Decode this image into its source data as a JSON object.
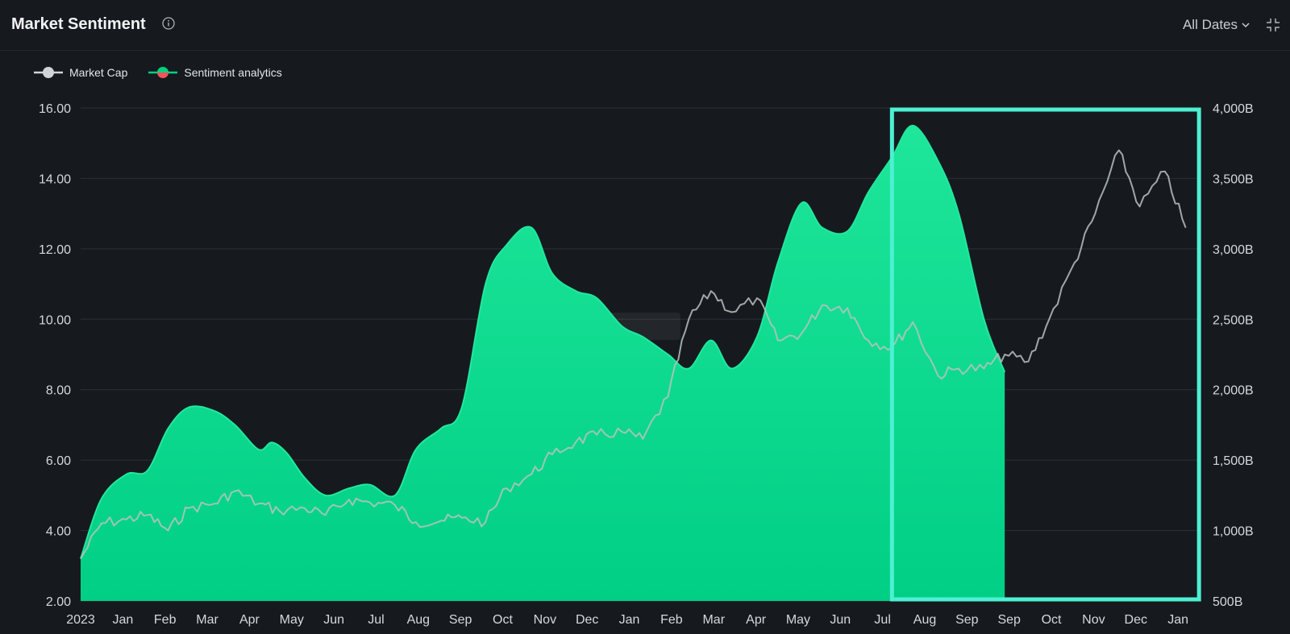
{
  "header": {
    "title": "Market Sentiment",
    "date_range_label": "All Dates"
  },
  "icons": {
    "info": "info-icon",
    "dropdown": "chevron-down-icon",
    "collapse": "collapse-icon",
    "watermark": "brand-logo-watermark"
  },
  "colors": {
    "background": "#161a1f",
    "sentiment_fill": "#00d17f",
    "market_cap_line": "#b8c2c0",
    "highlight_box": "#4df0d2",
    "legend_negative": "#f2545b"
  },
  "chart_data": {
    "type": "area",
    "series": [
      {
        "name": "Sentiment analytics",
        "axis": "left",
        "x": [
          "2023-01-01",
          "2023-01-15",
          "2023-02-01",
          "2023-02-15",
          "2023-03-01",
          "2023-03-15",
          "2023-04-01",
          "2023-04-15",
          "2023-05-01",
          "2023-05-10",
          "2023-05-20",
          "2023-06-01",
          "2023-06-15",
          "2023-07-01",
          "2023-07-15",
          "2023-08-01",
          "2023-08-15",
          "2023-09-01",
          "2023-09-15",
          "2023-10-01",
          "2023-10-15",
          "2023-11-01",
          "2023-11-15",
          "2023-12-01",
          "2023-12-15",
          "2024-01-01",
          "2024-01-15",
          "2024-02-01",
          "2024-02-15",
          "2024-03-01",
          "2024-03-15",
          "2024-04-01",
          "2024-04-15",
          "2024-05-01",
          "2024-05-15",
          "2024-06-01",
          "2024-06-15",
          "2024-07-01",
          "2024-07-15",
          "2024-08-01",
          "2024-08-15",
          "2024-09-01",
          "2024-09-15",
          "2024-10-01",
          "2024-10-15",
          "2024-11-01",
          "2024-11-15",
          "2024-12-01",
          "2024-12-15",
          "2025-01-01",
          "2025-01-15"
        ],
        "values": [
          3.2,
          4.9,
          5.6,
          5.7,
          6.9,
          7.5,
          7.4,
          7.0,
          6.3,
          6.5,
          6.2,
          5.5,
          5.0,
          5.2,
          5.3,
          5.0,
          6.3,
          6.9,
          7.5,
          11.0,
          12.1,
          12.6,
          11.3,
          10.8,
          10.6,
          9.8,
          9.5,
          9.0,
          8.6,
          9.4,
          8.6,
          9.5,
          11.6,
          13.3,
          12.6,
          12.5,
          13.6,
          14.6,
          15.5,
          14.5,
          13.0,
          10.0,
          8.5,
          null,
          null,
          null,
          null,
          null,
          null,
          null,
          null
        ]
      },
      {
        "name": "Market Cap",
        "axis": "right",
        "x": [
          "2023-01-01",
          "2023-01-15",
          "2023-02-01",
          "2023-02-15",
          "2023-03-01",
          "2023-03-15",
          "2023-04-01",
          "2023-04-15",
          "2023-05-01",
          "2023-05-15",
          "2023-06-01",
          "2023-06-15",
          "2023-07-01",
          "2023-07-15",
          "2023-08-01",
          "2023-08-15",
          "2023-09-01",
          "2023-09-15",
          "2023-10-01",
          "2023-10-15",
          "2023-11-01",
          "2023-11-15",
          "2023-12-01",
          "2023-12-15",
          "2024-01-01",
          "2024-01-15",
          "2024-02-01",
          "2024-02-15",
          "2024-03-01",
          "2024-03-15",
          "2024-04-01",
          "2024-04-15",
          "2024-05-01",
          "2024-05-15",
          "2024-06-01",
          "2024-06-15",
          "2024-07-01",
          "2024-07-15",
          "2024-08-01",
          "2024-08-15",
          "2024-09-01",
          "2024-09-15",
          "2024-10-01",
          "2024-10-15",
          "2024-11-01",
          "2024-11-15",
          "2024-12-01",
          "2024-12-15",
          "2025-01-01",
          "2025-01-15"
        ],
        "values": [
          800,
          1050,
          1080,
          1110,
          1000,
          1160,
          1190,
          1280,
          1190,
          1140,
          1160,
          1110,
          1220,
          1200,
          1180,
          1060,
          1070,
          1090,
          1060,
          1300,
          1400,
          1540,
          1630,
          1680,
          1700,
          1650,
          1950,
          2500,
          2700,
          2550,
          2650,
          2350,
          2400,
          2600,
          2580,
          2350,
          2300,
          2480,
          2100,
          2150,
          2150,
          2250,
          2200,
          2500,
          2900,
          3250,
          3700,
          3300,
          3550,
          3150
        ]
      }
    ],
    "x_tick_labels": [
      "2023",
      "Jan",
      "Feb",
      "Mar",
      "Apr",
      "May",
      "Jun",
      "Jul",
      "Aug",
      "Sep",
      "Oct",
      "Nov",
      "Dec",
      "Jan",
      "Feb",
      "Mar",
      "Apr",
      "May",
      "Jun",
      "Jul",
      "Aug",
      "Sep",
      "Sep",
      "Oct",
      "Nov",
      "Dec",
      "Jan"
    ],
    "y_left": {
      "ticks": [
        "2.00",
        "4.00",
        "6.00",
        "8.00",
        "10.00",
        "12.00",
        "14.00",
        "16.00"
      ],
      "range": [
        2,
        16
      ]
    },
    "y_right": {
      "ticks": [
        "500B",
        "1,000B",
        "1,500B",
        "2,000B",
        "2,500B",
        "3,000B",
        "3,500B",
        "4,000B"
      ],
      "range": [
        500,
        4000
      ]
    },
    "legend": [
      "Market Cap",
      "Sentiment analytics"
    ],
    "legend_position": "top-left",
    "grid": true,
    "highlight_range": [
      "2024-07-01",
      "2025-01-24"
    ]
  }
}
